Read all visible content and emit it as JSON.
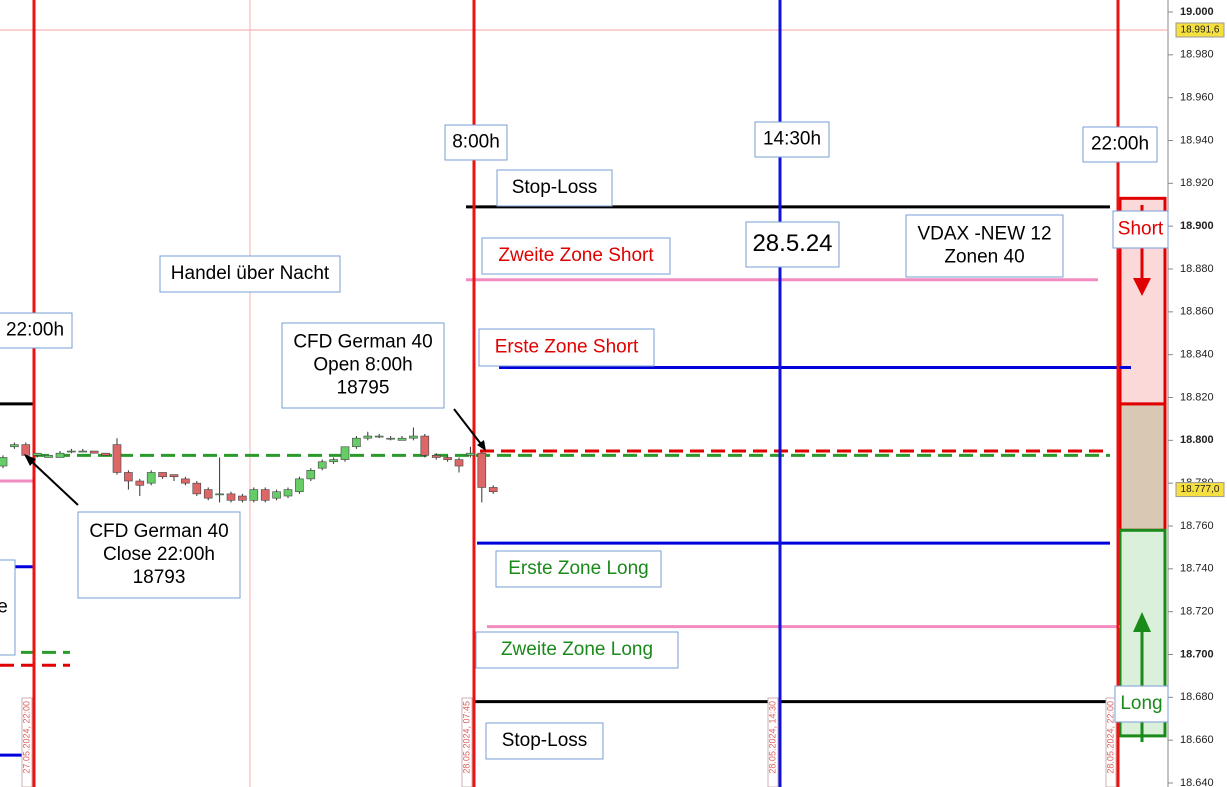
{
  "chart_data": {
    "type": "candlestick",
    "open": [
      18788,
      18797,
      18798,
      18793,
      18792,
      18792,
      18795,
      18795,
      18795,
      18794,
      18798,
      18785,
      18781,
      18780,
      18785,
      18784,
      18782,
      18780,
      18777,
      18775,
      18775,
      18774,
      18772,
      18777,
      18773,
      18774,
      18776,
      18782,
      18787,
      18790,
      18791,
      18797,
      18801,
      18802,
      18801,
      18800,
      18801,
      18802,
      18793,
      18792,
      18791,
      18793,
      18794,
      18778
    ],
    "high": [
      18793,
      18799,
      18799,
      18794,
      18793,
      18795,
      18796,
      18796,
      18795,
      18794,
      18801,
      18786,
      18782,
      18786,
      18785,
      18784,
      18783,
      18781,
      18778,
      18792,
      18776,
      18775,
      18778,
      18778,
      18777,
      18778,
      18783,
      18787,
      18791,
      18792,
      18797,
      18802,
      18804,
      18803,
      18802,
      18802,
      18806,
      18803,
      18794,
      18793,
      18792,
      18797,
      18795,
      18779
    ],
    "low": [
      18787,
      18796,
      18792,
      18792,
      18792,
      18792,
      18794,
      18795,
      18794,
      18793,
      18784,
      18777,
      18774,
      18779,
      18782,
      18781,
      18779,
      18774,
      18772,
      18771,
      18771,
      18771,
      18771,
      18771,
      18772,
      18773,
      18775,
      18781,
      18786,
      18789,
      18790,
      18796,
      18800,
      18801,
      18800,
      18800,
      18800,
      18792,
      18791,
      18790,
      18785,
      18792,
      18771,
      18775
    ],
    "close": [
      18792,
      18798,
      18793,
      18794,
      18793,
      18794,
      18795,
      18795,
      18794,
      18793,
      18785,
      18781,
      18779,
      18785,
      18783,
      18783,
      18780,
      18775,
      18773,
      18775,
      18772,
      18772,
      18777,
      18772,
      18776,
      18777,
      18782,
      18786,
      18790,
      18791,
      18797,
      18801,
      18802,
      18802,
      18801,
      18801,
      18802,
      18793,
      18792,
      18791,
      18788,
      18794,
      18778,
      18776
    ],
    "up_color": "#66cc66",
    "down_color": "#dd6666",
    "ylim": [
      18640,
      19000
    ],
    "yticks": [
      {
        "value": 18640,
        "label": "18.640"
      },
      {
        "value": 18660,
        "label": "18.660"
      },
      {
        "value": 18680,
        "label": "18.680"
      },
      {
        "value": 18700,
        "label": "18.700"
      },
      {
        "value": 18720,
        "label": "18.720"
      },
      {
        "value": 18740,
        "label": "18.740"
      },
      {
        "value": 18760,
        "label": "18.760"
      },
      {
        "value": 18780,
        "label": "18.780"
      },
      {
        "value": 18800,
        "label": "18.800"
      },
      {
        "value": 18820,
        "label": "18.820"
      },
      {
        "value": 18840,
        "label": "18.840"
      },
      {
        "value": 18860,
        "label": "18.860"
      },
      {
        "value": 18880,
        "label": "18.880"
      },
      {
        "value": 18900,
        "label": "18.900"
      },
      {
        "value": 18920,
        "label": "18.920"
      },
      {
        "value": 18940,
        "label": "18.940"
      },
      {
        "value": 18960,
        "label": "18.960"
      },
      {
        "value": 18980,
        "label": "18.980"
      },
      {
        "value": 19000,
        "label": "19.000"
      }
    ],
    "price_labels": [
      {
        "value": 18991.6,
        "label": "18.991,6"
      },
      {
        "value": 18777,
        "label": "18.777,0"
      }
    ],
    "levels": [
      {
        "label": "Stop-Loss",
        "value": 18909,
        "color": "#000000"
      },
      {
        "label": "Zweite Zone Short",
        "value": 18875,
        "color": "#f28cc0",
        "text_color": "#e00000"
      },
      {
        "label": "Erste Zone Short",
        "value": 18834,
        "color": "#0000dd",
        "text_color": "#e00000"
      },
      {
        "value": 18795,
        "color": "#e00000",
        "dashed": true
      },
      {
        "value": 18793,
        "color": "#2a9a2a",
        "dashed": true
      },
      {
        "label": "Erste Zone Long",
        "value": 18752,
        "color": "#0000dd",
        "text_color": "#1a8a1a"
      },
      {
        "label": "Zweite Zone Long",
        "value": 18713,
        "color": "#f28cc0",
        "text_color": "#1a8a1a"
      },
      {
        "label": "Stop-Loss",
        "value": 18678,
        "color": "#000000"
      }
    ],
    "prev_levels": [
      {
        "value": 18817,
        "color": "#000000"
      },
      {
        "value": 18781,
        "color": "#f28cc0"
      },
      {
        "value": 18741,
        "color": "#0000dd"
      },
      {
        "value": 18701,
        "color": "#2a9a2a",
        "dashed": true
      },
      {
        "value": 18695,
        "color": "#e00000",
        "dashed": true
      },
      {
        "value": 18653,
        "color": "#0000dd"
      }
    ],
    "zones": [
      {
        "label": "Short",
        "from": 18817,
        "to": 18913,
        "color": "#fcd9d9",
        "border": "#e00000"
      },
      {
        "from": 18758,
        "to": 18817,
        "color": "#d9c8b4",
        "border": "#e00000"
      },
      {
        "label": "Long",
        "from": 18662,
        "to": 18758,
        "color": "#daf0da",
        "border": "#1a8a1a"
      }
    ],
    "time_markers": [
      {
        "label": "27.05.2024, 22:00",
        "color": "#ee1111"
      },
      {
        "label": "28.05.2024, 07:45",
        "color": "#ee1111"
      },
      {
        "label": "28.05.2024, 14:30",
        "color": "#1111dd"
      },
      {
        "label": "28.05.2024, 22:00",
        "color": "#ee1111"
      }
    ],
    "annotations": [
      [
        "22:00h"
      ],
      [
        "8:00h"
      ],
      [
        "14:30h"
      ],
      [
        "22:00h"
      ],
      [
        "28.5.24"
      ],
      [
        "VDAX -NEW 12",
        "Zonen 40"
      ],
      [
        "Handel über Nacht"
      ],
      [
        "CFD German 40",
        "Open 8:00h",
        "18795"
      ],
      [
        "CFD German 40",
        "Close 22:00h",
        "18793"
      ],
      [
        "e"
      ]
    ]
  }
}
